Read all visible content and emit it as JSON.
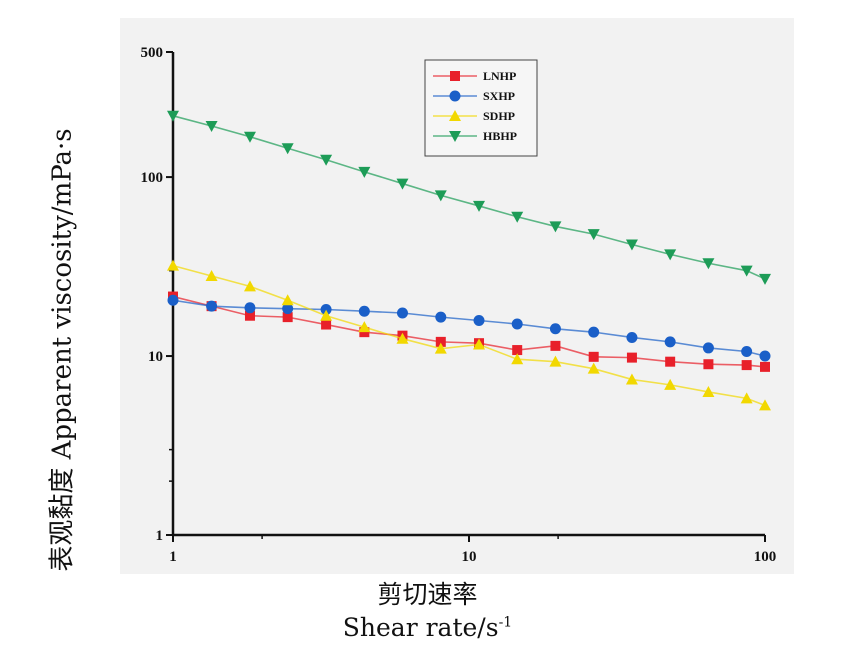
{
  "chart_data": {
    "type": "line",
    "xscale": "log",
    "yscale": "log",
    "xlim": [
      1,
      100
    ],
    "ylim": [
      1,
      500
    ],
    "xticks": [
      {
        "value": 1,
        "label": "1"
      },
      {
        "value": 10,
        "label": "10"
      },
      {
        "value": 100,
        "label": "100"
      }
    ],
    "yticks": [
      {
        "value": 1,
        "label": "1"
      },
      {
        "value": 10,
        "label": "10"
      },
      {
        "value": 100,
        "label": "100"
      },
      {
        "value": 500,
        "label": "500"
      }
    ],
    "xlabel_cn": "剪切速率",
    "xlabel_en": "Shear rate/s",
    "xlabel_en_sup": "-1",
    "ylabel": "表观黏度 Apparent viscosity/mPa·s",
    "legend_position": "top-center",
    "grid": false,
    "x": [
      1,
      1.35,
      1.82,
      2.44,
      3.29,
      4.43,
      5.96,
      8.03,
      10.81,
      14.55,
      19.59,
      26.38,
      35.52,
      47.82,
      64.39,
      86.7,
      100
    ],
    "series": [
      {
        "name": "LNHP",
        "color": "#e8202a",
        "marker": "square",
        "values": [
          21.5,
          19.0,
          16.8,
          16.5,
          15.0,
          13.6,
          13.0,
          12.0,
          11.8,
          10.8,
          11.4,
          9.9,
          9.8,
          9.3,
          9.0,
          8.9,
          8.7
        ]
      },
      {
        "name": "SXHP",
        "color": "#1a5fc8",
        "marker": "circle",
        "values": [
          20.5,
          19.0,
          18.6,
          18.4,
          18.2,
          17.8,
          17.4,
          16.5,
          15.8,
          15.1,
          14.2,
          13.6,
          12.7,
          12.0,
          11.1,
          10.6,
          10.0
        ]
      },
      {
        "name": "SDHP",
        "color": "#f2d800",
        "marker": "triangle-up",
        "values": [
          32.0,
          28.0,
          24.5,
          20.5,
          16.8,
          14.5,
          12.5,
          11.0,
          11.6,
          9.6,
          9.3,
          8.5,
          7.4,
          6.9,
          6.3,
          5.8,
          5.3
        ]
      },
      {
        "name": "HBHP",
        "color": "#1d9c57",
        "marker": "triangle-down",
        "values": [
          220,
          193,
          168,
          145,
          125,
          107,
          92,
          79,
          69,
          60,
          53,
          48,
          42,
          37,
          33,
          30,
          27
        ]
      }
    ]
  }
}
